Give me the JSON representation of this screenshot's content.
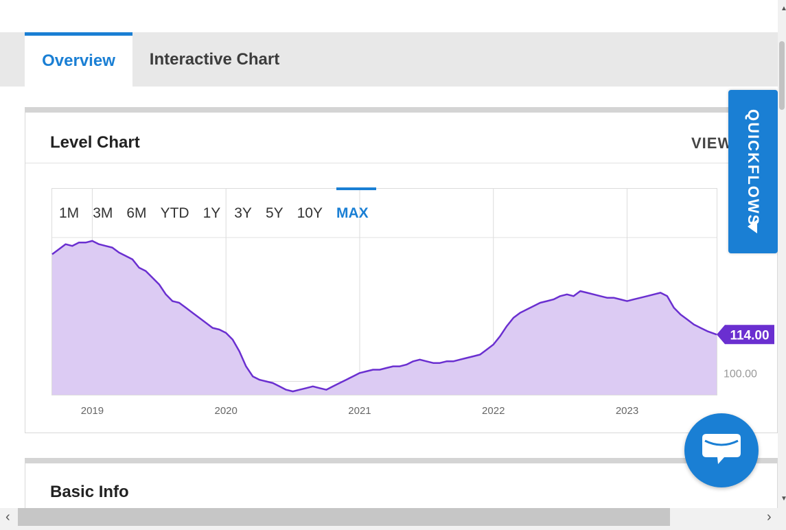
{
  "tabs": [
    {
      "label": "Overview",
      "active": true
    },
    {
      "label": "Interactive Chart",
      "active": false
    }
  ],
  "level_chart": {
    "title": "Level Chart",
    "view_link": "VIEW"
  },
  "range_buttons": [
    "1M",
    "3M",
    "6M",
    "YTD",
    "1Y",
    "3Y",
    "5Y",
    "10Y",
    "MAX"
  ],
  "active_range": "MAX",
  "quickflows": {
    "label": "QUICKFLOWS"
  },
  "basic_info": {
    "title": "Basic Info"
  },
  "icons": {
    "chat": "chat-bubble-icon",
    "collapse": "triangle-left-icon"
  },
  "colors": {
    "accent": "#1a7fd4",
    "series_line": "#6a2fd0",
    "series_fill": "#dccbf3",
    "tab_bar": "#e8e8e8"
  },
  "chart_data": {
    "type": "area",
    "x_tick_labels": [
      "2019",
      "2020",
      "2021",
      "2022",
      "2023"
    ],
    "last_value_label": "114.00",
    "partial_y_label": "100.00",
    "y_range": [
      96,
      143
    ],
    "x_range": [
      2018.7,
      2023.67
    ],
    "series": [
      {
        "x": [
          2018.7,
          2018.75,
          2018.8,
          2018.85,
          2018.9,
          2018.95,
          2019.0,
          2019.05,
          2019.1,
          2019.15,
          2019.2,
          2019.25,
          2019.3,
          2019.35,
          2019.4,
          2019.45,
          2019.5,
          2019.55,
          2019.6,
          2019.65,
          2019.7,
          2019.75,
          2019.8,
          2019.85,
          2019.9,
          2019.95,
          2020.0,
          2020.05,
          2020.1,
          2020.15,
          2020.2,
          2020.25,
          2020.3,
          2020.35,
          2020.4,
          2020.45,
          2020.5,
          2020.55,
          2020.6,
          2020.65,
          2020.7,
          2020.75,
          2020.8,
          2020.85,
          2020.9,
          2020.95,
          2021.0,
          2021.05,
          2021.1,
          2021.15,
          2021.2,
          2021.25,
          2021.3,
          2021.35,
          2021.4,
          2021.45,
          2021.5,
          2021.55,
          2021.6,
          2021.65,
          2021.7,
          2021.75,
          2021.8,
          2021.85,
          2021.9,
          2021.95,
          2022.0,
          2022.05,
          2022.1,
          2022.15,
          2022.2,
          2022.25,
          2022.3,
          2022.35,
          2022.4,
          2022.45,
          2022.5,
          2022.55,
          2022.6,
          2022.65,
          2022.7,
          2022.75,
          2022.8,
          2022.85,
          2022.9,
          2022.95,
          2023.0,
          2023.05,
          2023.1,
          2023.15,
          2023.2,
          2023.25,
          2023.3,
          2023.35,
          2023.4,
          2023.45,
          2023.5,
          2023.55,
          2023.6,
          2023.67
        ],
        "y": [
          138.0,
          139.5,
          141.0,
          140.5,
          141.5,
          141.5,
          142.0,
          141.0,
          140.5,
          140.0,
          138.5,
          137.5,
          136.5,
          134.0,
          133.0,
          131.0,
          129.0,
          126.0,
          124.0,
          123.5,
          122.0,
          120.5,
          119.0,
          117.5,
          116.0,
          115.5,
          114.5,
          112.5,
          109.0,
          104.5,
          101.5,
          100.5,
          100.0,
          99.5,
          98.5,
          97.5,
          97.0,
          97.5,
          98.0,
          98.5,
          98.0,
          97.5,
          98.5,
          99.5,
          100.5,
          101.5,
          102.5,
          103.0,
          103.5,
          103.5,
          104.0,
          104.5,
          104.5,
          105.0,
          106.0,
          106.5,
          106.0,
          105.5,
          105.5,
          106.0,
          106.0,
          106.5,
          107.0,
          107.5,
          108.0,
          109.5,
          111.0,
          113.5,
          116.5,
          119.0,
          120.5,
          121.5,
          122.5,
          123.5,
          124.0,
          124.5,
          125.5,
          126.0,
          125.5,
          127.0,
          126.5,
          126.0,
          125.5,
          125.0,
          125.0,
          124.5,
          124.0,
          124.5,
          125.0,
          125.5,
          126.0,
          126.5,
          125.5,
          122.0,
          120.0,
          118.5,
          117.0,
          116.0,
          115.0,
          114.0
        ]
      }
    ]
  }
}
